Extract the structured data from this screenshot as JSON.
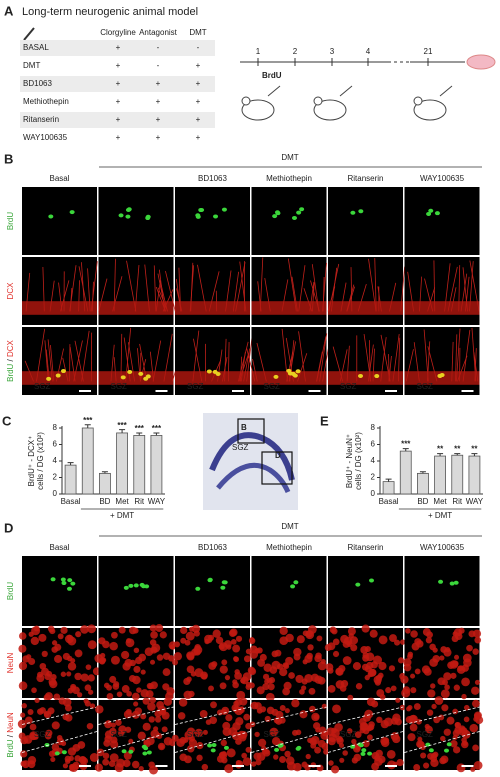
{
  "panel_a": {
    "letter": "A",
    "title": "Long-term neurogenic animal model",
    "table": {
      "columns": [
        "Clorgyline",
        "Antagonist",
        "DMT"
      ],
      "rows": [
        {
          "label": "BASAL",
          "cells": [
            "+",
            "-",
            "-"
          ]
        },
        {
          "label": "DMT",
          "cells": [
            "+",
            "-",
            "+"
          ]
        },
        {
          "label": "BD1063",
          "cells": [
            "+",
            "+",
            "+"
          ]
        },
        {
          "label": "Methiothepin",
          "cells": [
            "+",
            "+",
            "+"
          ]
        },
        {
          "label": "Ritanserin",
          "cells": [
            "+",
            "+",
            "+"
          ]
        },
        {
          "label": "WAY100635",
          "cells": [
            "+",
            "+",
            "+"
          ]
        }
      ]
    },
    "timeline": {
      "days": [
        "1",
        "2",
        "3",
        "4",
        "21"
      ],
      "injection": "BrdU"
    }
  },
  "panel_b": {
    "letter": "B",
    "group": "DMT",
    "columns": [
      "Basal",
      null,
      "BD1063",
      "Methiothepin",
      "Ritanserin",
      "WAY100635"
    ],
    "rows": [
      [
        {
          "text": "BrdU",
          "color": "#3aa63a"
        }
      ],
      [
        {
          "text": "DCX",
          "color": "#e0302a"
        }
      ],
      [
        {
          "text": "BrdU",
          "color": "#3aa63a"
        },
        {
          "text": "/",
          "color": "#222222"
        },
        {
          "text": "DCX",
          "color": "#e0302a"
        }
      ]
    ],
    "region": "SGZ"
  },
  "hippocampus_image": {
    "labels": [
      "B",
      "D",
      "SGZ"
    ]
  },
  "chart_data": [
    {
      "type": "bar",
      "panel_label": "C",
      "y_label": [
        "BrdU⁺ - DCX⁺",
        "cells / DG (x10²)"
      ],
      "categories": [
        "Basal",
        null,
        "BD",
        "Met",
        "Rit",
        "WAY"
      ],
      "values": [
        3.5,
        8.0,
        2.5,
        7.4,
        7.1,
        7.1
      ],
      "errors": [
        0.3,
        0.4,
        0.2,
        0.4,
        0.3,
        0.3
      ],
      "significance": [
        null,
        "***",
        null,
        "***",
        "***",
        "***"
      ],
      "group_label": "+ DMT",
      "color": "#d9d9d9",
      "ylim": [
        0,
        8
      ],
      "yticks": [
        0,
        2,
        4,
        6,
        8
      ]
    },
    {
      "type": "bar",
      "panel_label": "E",
      "y_label": [
        "BrdU⁺ - NeuN⁺",
        "cells / DG (x10²)"
      ],
      "categories": [
        "Basal",
        null,
        "BD",
        "Met",
        "Rit",
        "WAY"
      ],
      "values": [
        1.5,
        5.2,
        2.5,
        4.6,
        4.7,
        4.6
      ],
      "errors": [
        0.3,
        0.3,
        0.2,
        0.3,
        0.2,
        0.3
      ],
      "significance": [
        null,
        "***",
        null,
        "**",
        "**",
        "**"
      ],
      "group_label": "+ DMT",
      "color": "#d9d9d9",
      "ylim": [
        0,
        8
      ],
      "yticks": [
        0,
        2,
        4,
        6,
        8
      ]
    }
  ],
  "panel_d": {
    "letter": "D",
    "group": "DMT",
    "columns": [
      "Basal",
      null,
      "BD1063",
      "Methiothepin",
      "Ritanserin",
      "WAY100635"
    ],
    "rows": [
      [
        {
          "text": "BrdU",
          "color": "#3aa63a"
        }
      ],
      [
        {
          "text": "NeuN",
          "color": "#e0302a"
        }
      ],
      [
        {
          "text": "BrdU",
          "color": "#3aa63a"
        },
        {
          "text": "/",
          "color": "#222222"
        },
        {
          "text": "NeuN",
          "color": "#e0302a"
        }
      ]
    ],
    "region": "SGZ"
  }
}
